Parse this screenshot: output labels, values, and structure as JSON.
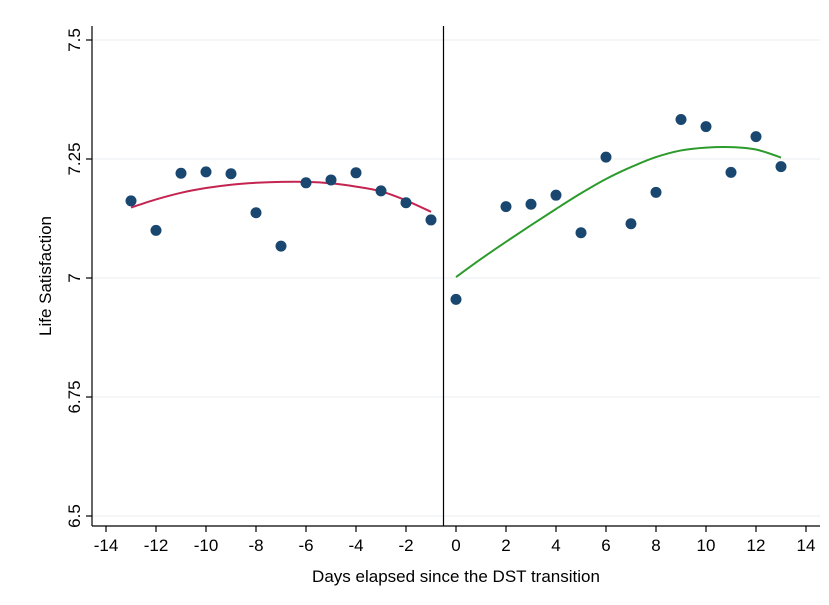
{
  "chart_data": {
    "type": "scatter",
    "title": "",
    "xlabel": "Days elapsed since the DST transition",
    "ylabel": "Life Satisfaction",
    "xlim": [
      -15,
      15
    ],
    "ylim": [
      6.5,
      7.5
    ],
    "x_ticks": [
      -14,
      -12,
      -10,
      -8,
      -6,
      -4,
      -2,
      0,
      2,
      4,
      6,
      8,
      10,
      12,
      14
    ],
    "x_tick_labels": [
      "-14",
      "-12",
      "-10",
      "-8",
      "-6",
      "-4",
      "-2",
      "0",
      "2",
      "4",
      "6",
      "8",
      "10",
      "12",
      "14"
    ],
    "y_ticks": [
      6.5,
      6.75,
      7,
      7.25,
      7.5
    ],
    "y_tick_labels": [
      "6.5",
      "6.75",
      "7",
      "7.25",
      "7.5"
    ],
    "grid": true,
    "vertical_line_x": -0.5,
    "points": {
      "x": [
        -13,
        -12,
        -11,
        -10,
        -9,
        -8,
        -7,
        -6,
        -5,
        -4,
        -3,
        -2,
        -1,
        0,
        2,
        3,
        4,
        5,
        6,
        7,
        8,
        9,
        10,
        11,
        12,
        13
      ],
      "y": [
        7.162,
        7.1,
        7.22,
        7.223,
        7.219,
        7.137,
        7.067,
        7.2,
        7.206,
        7.221,
        7.183,
        7.158,
        7.122,
        6.955,
        7.15,
        7.155,
        7.174,
        7.095,
        7.254,
        7.114,
        7.18,
        7.333,
        7.318,
        7.222,
        7.297,
        7.234
      ],
      "color": "#1a476f"
    },
    "fits": [
      {
        "x": [
          -13,
          -12,
          -11,
          -10,
          -9,
          -8,
          -7,
          -6,
          -5,
          -4,
          -3,
          -2,
          -1
        ],
        "y": [
          7.148,
          7.165,
          7.179,
          7.189,
          7.196,
          7.2,
          7.202,
          7.202,
          7.199,
          7.192,
          7.182,
          7.163,
          7.139
        ],
        "color": "#c42450"
      },
      {
        "x": [
          0,
          1,
          2,
          3,
          4,
          5,
          6,
          7,
          8,
          9,
          10,
          11,
          12,
          13
        ],
        "y": [
          7.002,
          7.04,
          7.076,
          7.111,
          7.145,
          7.178,
          7.208,
          7.233,
          7.254,
          7.268,
          7.274,
          7.275,
          7.27,
          7.253
        ],
        "color": "#2c9b2c"
      }
    ]
  }
}
